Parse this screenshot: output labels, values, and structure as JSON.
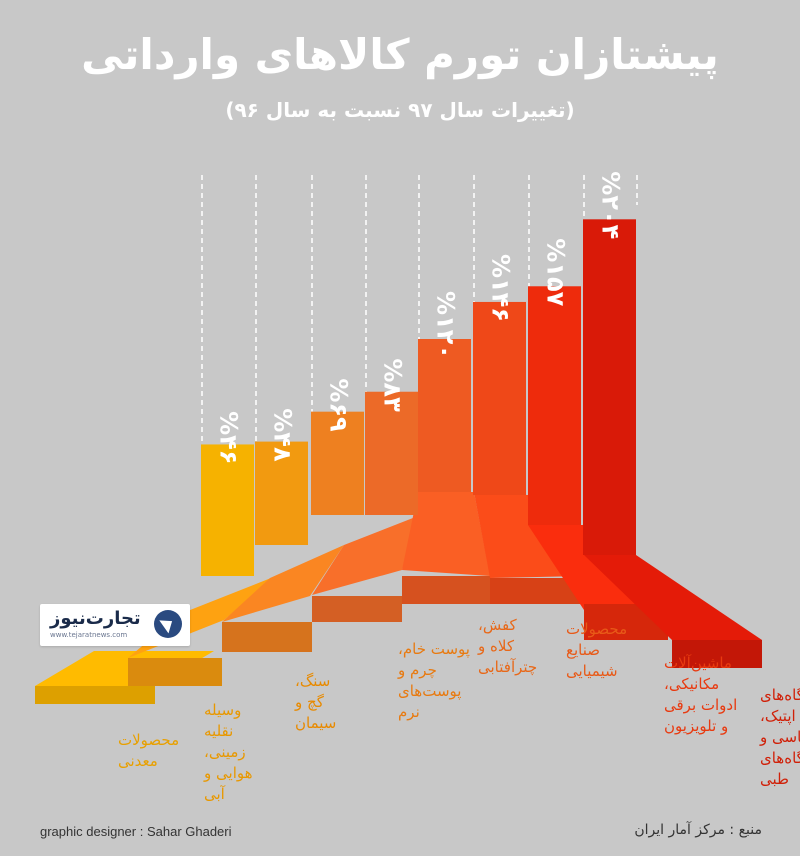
{
  "header": {
    "title": "پیشتازان تورم کالاهای وارداتی",
    "subtitle": "(تغییرات سال ۹۷ نسبت به سال ۹۶)"
  },
  "logo": {
    "name": "تجارت‌نیوز",
    "url": "www.tejaratnews.com",
    "icon": "tejarat-news-logo-icon"
  },
  "footer": {
    "credit": "graphic designer : Sahar Ghaderi",
    "source": "منبع : مرکز آمار ایران"
  },
  "colors": {
    "background": "#c8c8c8",
    "gradient": [
      "#f6c800",
      "#f6b200",
      "#f29a10",
      "#ee8020",
      "#ec6a28",
      "#ee5a22",
      "#ef4818",
      "#ee2b0c",
      "#d91a08"
    ]
  },
  "chart_data": {
    "type": "bar",
    "categories": [
      "محصولات معدنی",
      "وسیله نقلیه زمینی، هوایی و آبی",
      "سنگ، گچ و سیمان",
      "پوست خام، چرم و پوست‌های نرم",
      "کفش، کلاه و چترآفتابی",
      "محصولات صنایع شیمیایی",
      "ماشین‌آلات مکانیکی، ادوات برقی و تلویزیون",
      "دستگاه‌های اپتیک، عکاسی و دستگاه‌های طبی"
    ],
    "values": [
      46,
      48,
      69,
      83,
      120,
      146,
      157,
      204
    ],
    "labels": [
      "%۴۶",
      "%۴۸",
      "%۶۹",
      "%۸۳",
      "%۱۲۰",
      "%۱۴۶",
      "%۱۵۷",
      "%۲۰۴"
    ],
    "label_lines": [
      [
        "محصولات",
        "معدنی"
      ],
      [
        "وسیله",
        "نقلیه",
        "زمینی،",
        "هوایی و",
        "آبی"
      ],
      [
        "سنگ،",
        "گچ و",
        "سیمان"
      ],
      [
        "پوست خام،",
        "چرم و",
        "پوست‌های",
        "نرم"
      ],
      [
        "کفش،",
        "کلاه و",
        "چترآفتابی"
      ],
      [
        "محصولات",
        "صنایع",
        "شیمیایی"
      ],
      [
        "ماشین‌آلات",
        "مکانیکی،",
        "ادوات برقی",
        "و تلویزیون"
      ],
      [
        "دستگاه‌های",
        "اپتیک،",
        "عکاسی و",
        "دستگاه‌های",
        "طبی"
      ]
    ],
    "label_colors": [
      "#e8a000",
      "#e89800",
      "#e88a00",
      "#e87a10",
      "#e86818",
      "#e85a18",
      "#e83a10",
      "#d02008"
    ]
  }
}
